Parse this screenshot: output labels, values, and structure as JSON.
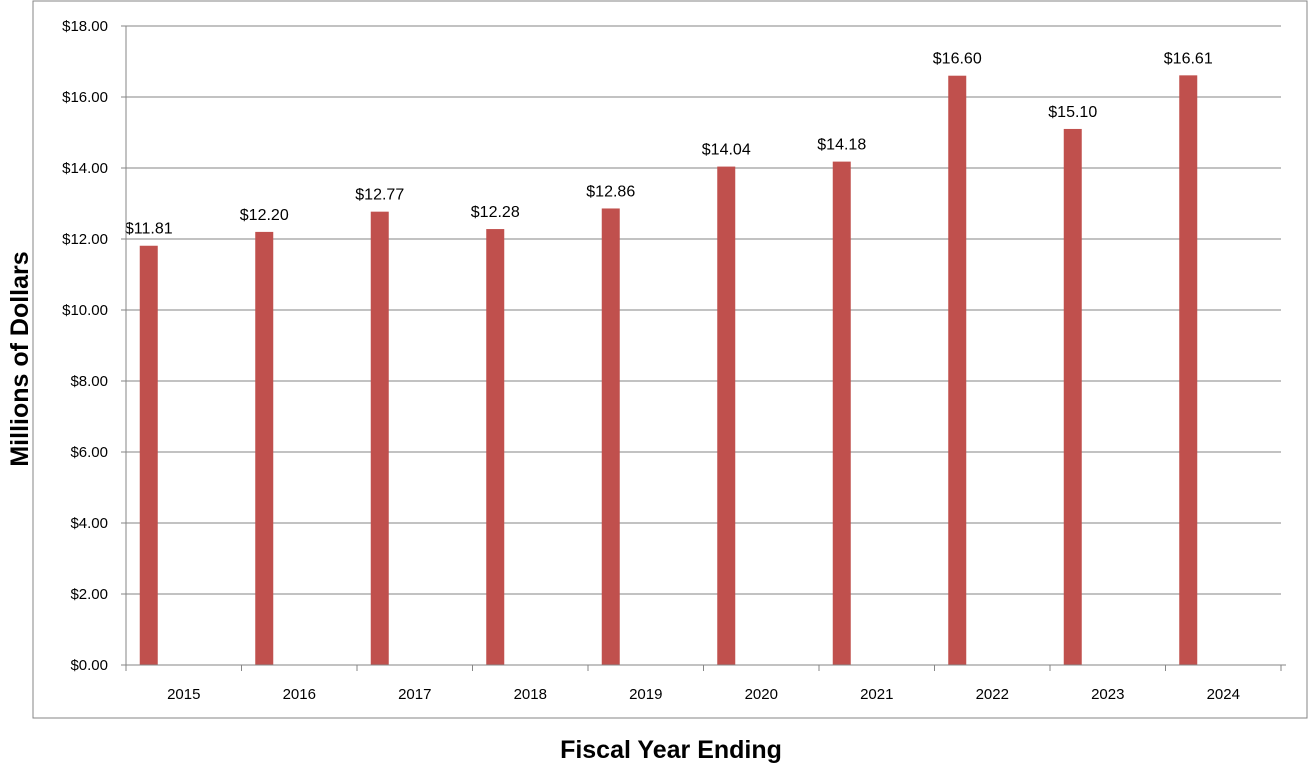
{
  "chart_data": {
    "type": "bar",
    "title": "",
    "xlabel": "Fiscal Year Ending",
    "ylabel": "Millions of Dollars",
    "categories": [
      "2015",
      "2016",
      "2017",
      "2018",
      "2019",
      "2020",
      "2021",
      "2022",
      "2023",
      "2024"
    ],
    "values": [
      11.81,
      12.2,
      12.77,
      12.28,
      12.86,
      14.04,
      14.18,
      16.6,
      15.1,
      16.61
    ],
    "data_labels": [
      "$11.81",
      "$12.20",
      "$12.77",
      "$12.28",
      "$12.86",
      "$14.04",
      "$14.18",
      "$16.60",
      "$15.10",
      "$16.61"
    ],
    "ylim": [
      0,
      18
    ],
    "yticks": [
      0,
      2,
      4,
      6,
      8,
      10,
      12,
      14,
      16,
      18
    ],
    "ytick_labels": [
      "$0.00",
      "$2.00",
      "$4.00",
      "$6.00",
      "$8.00",
      "$10.00",
      "$12.00",
      "$14.00",
      "$16.00",
      "$18.00"
    ],
    "grid": true,
    "legend": "none",
    "colors": {
      "bar": "#c0504d",
      "grid": "#868686",
      "axis": "#868686",
      "border": "#868686"
    }
  }
}
